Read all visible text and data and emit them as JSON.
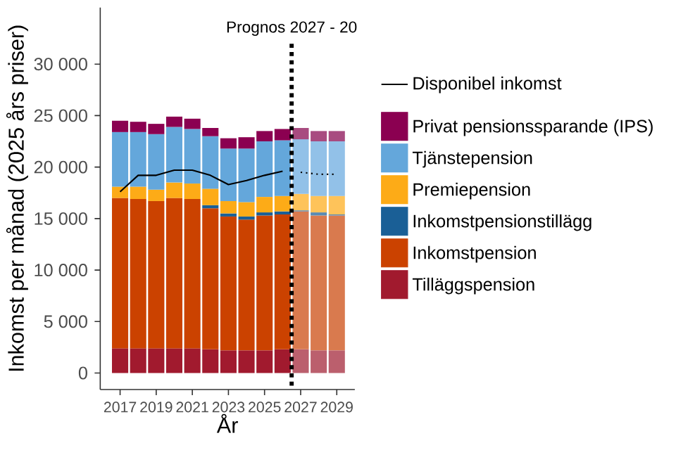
{
  "chart_data": {
    "type": "bar",
    "stacked": true,
    "xlabel": "År",
    "ylabel": "Inkomst per månad (2025 års priser)",
    "x": [
      2017,
      2018,
      2019,
      2020,
      2021,
      2022,
      2023,
      2024,
      2025,
      2026,
      2027,
      2028,
      2029
    ],
    "xlim": [
      2015.9,
      2030
    ],
    "xticks": [
      2017,
      2019,
      2021,
      2023,
      2025,
      2027,
      2029
    ],
    "ylim": [
      -1600,
      35500
    ],
    "yticks": [
      0,
      {
        "value": 5000,
        "label": "5 000"
      },
      {
        "value": 10000,
        "label": "10 000"
      },
      {
        "value": 15000,
        "label": "15 000"
      },
      {
        "value": 20000,
        "label": "20 000"
      },
      {
        "value": 25000,
        "label": "25 000"
      },
      {
        "value": 30000,
        "label": "30 000"
      }
    ],
    "legend": "right",
    "grid": false,
    "ref_lines": [
      {
        "axis": "x",
        "value": 2026.5,
        "label": "Prognos 2027 - 20",
        "line_style": "dotted",
        "color": "#000000"
      }
    ],
    "series": [
      {
        "name": "Tilläggspension",
        "color": "#a11a2e",
        "colors": [
          "#a11a2e",
          "#a11a2e",
          "#a11a2e",
          "#a11a2e",
          "#a11a2e",
          "#a11a2e",
          "#a11a2e",
          "#a11a2e",
          "#a11a2e",
          "#a11a2e",
          "#bb5f6d",
          "#bb5f6d",
          "#bb5f6d"
        ],
        "values": [
          2400,
          2400,
          2400,
          2400,
          2400,
          2300,
          2200,
          2200,
          2200,
          2300,
          2300,
          2200,
          2200
        ]
      },
      {
        "name": "Inkomstpension",
        "color": "#cb4200",
        "colors": [
          "#cb4200",
          "#cb4200",
          "#cb4200",
          "#cb4200",
          "#cb4200",
          "#cb4200",
          "#cb4200",
          "#cb4200",
          "#cb4200",
          "#cb4200",
          "#d97a4e",
          "#d97a4e",
          "#d97a4e"
        ],
        "values": [
          14600,
          14500,
          14300,
          14600,
          14500,
          13700,
          13000,
          12700,
          13100,
          13100,
          13400,
          13100,
          13100
        ]
      },
      {
        "name": "Inkomstpensionstillägg",
        "color": "#1a5f96",
        "colors": [
          "#1a5f96",
          "#1a5f96",
          "#1a5f96",
          "#1a5f96",
          "#1a5f96",
          "#1a5f96",
          "#1a5f96",
          "#1a5f96",
          "#1a5f96",
          "#1a5f96",
          "#5a8bb3",
          "#5a8bb3",
          "#5a8bb3"
        ],
        "values": [
          0,
          0,
          0,
          0,
          0,
          300,
          300,
          300,
          300,
          300,
          100,
          300,
          100
        ]
      },
      {
        "name": "Premiepension",
        "color": "#fdab17",
        "colors": [
          "#fdab17",
          "#fdab17",
          "#fdab17",
          "#fdab17",
          "#fdab17",
          "#fdab17",
          "#fdab17",
          "#fdab17",
          "#fdab17",
          "#fdab17",
          "#fec35a",
          "#fec35a",
          "#fec35a"
        ],
        "values": [
          1100,
          1200,
          1100,
          1500,
          1500,
          1600,
          1200,
          1400,
          1500,
          1500,
          1600,
          1600,
          1800
        ]
      },
      {
        "name": "Tjänstepension",
        "color": "#64a7db",
        "colors": [
          "#64a7db",
          "#64a7db",
          "#64a7db",
          "#64a7db",
          "#64a7db",
          "#64a7db",
          "#64a7db",
          "#64a7db",
          "#64a7db",
          "#64a7db",
          "#92c1e8",
          "#92c1e8",
          "#92c1e8"
        ],
        "values": [
          5300,
          5300,
          5400,
          5400,
          5300,
          5100,
          5100,
          5200,
          5400,
          5400,
          5300,
          5300,
          5300
        ]
      },
      {
        "name": "Privat pensionssparande (IPS)",
        "color": "#8b0051",
        "colors": [
          "#8b0051",
          "#8b0051",
          "#8b0051",
          "#8b0051",
          "#8b0051",
          "#8b0051",
          "#8b0051",
          "#8b0051",
          "#8b0051",
          "#8b0051",
          "#a84b80",
          "#a84b80",
          "#a84b80"
        ],
        "values": [
          1100,
          1000,
          1000,
          1000,
          1000,
          800,
          1000,
          1100,
          1000,
          1100,
          1100,
          1000,
          1000
        ]
      },
      {
        "type": "line",
        "name": "Disponibel inkomst",
        "color": "#000000",
        "line_style": "solid",
        "x": [
          2017,
          2018,
          2019,
          2020,
          2021,
          2022,
          2023,
          2024,
          2025,
          2026
        ],
        "values": [
          17600,
          19200,
          19200,
          19700,
          19700,
          19200,
          18300,
          18700,
          19200,
          19600
        ]
      },
      {
        "type": "line",
        "color": "#000000",
        "line_style": "dotted",
        "x": [
          2027,
          2028,
          2029
        ],
        "values": [
          19500,
          19300,
          19300
        ]
      }
    ]
  }
}
